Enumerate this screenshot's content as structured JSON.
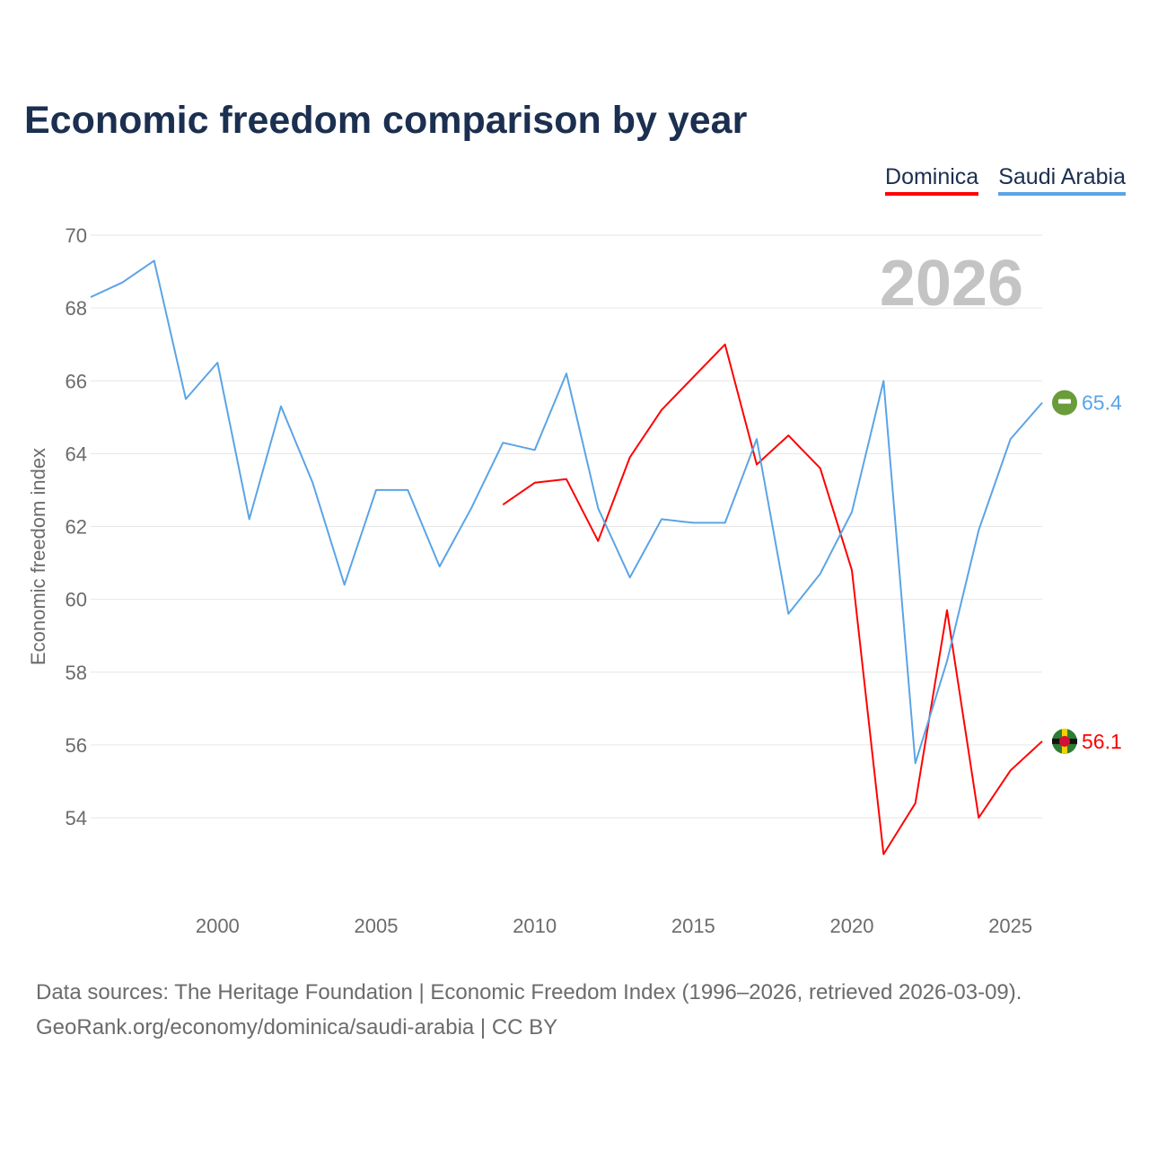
{
  "chart_data": {
    "type": "line",
    "title": "Economic freedom comparison by year",
    "xlabel": "",
    "ylabel": "Economic freedom index",
    "xlim": [
      1996,
      2026
    ],
    "ylim": [
      52,
      70
    ],
    "y_ticks": [
      54,
      56,
      58,
      60,
      62,
      64,
      66,
      68,
      70
    ],
    "x_ticks": [
      2000,
      2005,
      2010,
      2015,
      2020,
      2025
    ],
    "grid": true,
    "legend_placement": "top-right",
    "watermark_year": "2026",
    "series": [
      {
        "name": "Dominica",
        "color": "#ff0000",
        "end_label": "56.1",
        "x": [
          2009,
          2010,
          2011,
          2012,
          2013,
          2014,
          2015,
          2016,
          2017,
          2018,
          2019,
          2020,
          2021,
          2022,
          2023,
          2024,
          2025,
          2026
        ],
        "values": [
          62.6,
          63.2,
          63.3,
          61.6,
          63.9,
          65.2,
          66.1,
          67.0,
          63.7,
          64.5,
          63.6,
          60.8,
          53.0,
          54.4,
          59.7,
          54.0,
          55.3,
          56.1
        ]
      },
      {
        "name": "Saudi Arabia",
        "color": "#5ba4e6",
        "end_label": "65.4",
        "x": [
          1996,
          1997,
          1998,
          1999,
          2000,
          2001,
          2002,
          2003,
          2004,
          2005,
          2006,
          2007,
          2008,
          2009,
          2010,
          2011,
          2012,
          2013,
          2014,
          2015,
          2016,
          2017,
          2018,
          2019,
          2020,
          2021,
          2022,
          2023,
          2024,
          2025,
          2026
        ],
        "values": [
          68.3,
          68.7,
          69.3,
          65.5,
          66.5,
          62.2,
          65.3,
          63.2,
          60.4,
          63.0,
          63.0,
          60.9,
          62.5,
          64.3,
          64.1,
          66.2,
          62.5,
          60.6,
          62.2,
          62.1,
          62.1,
          64.4,
          59.6,
          60.7,
          62.4,
          66.0,
          55.5,
          58.3,
          61.9,
          64.4,
          65.4
        ]
      }
    ]
  },
  "footer": {
    "line1": "Data sources: The Heritage Foundation | Economic Freedom Index (1996–2026, retrieved 2026-03-09).",
    "line2": "GeoRank.org/economy/dominica/saudi-arabia | CC BY"
  }
}
